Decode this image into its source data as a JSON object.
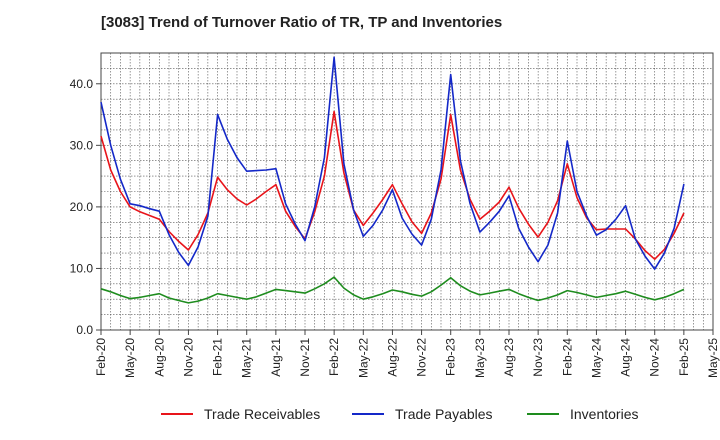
{
  "title": "[3083]  Trend of Turnover Ratio of TR, TP and Inventories",
  "chart_data": {
    "type": "line",
    "title": "[3083]  Trend of Turnover Ratio of TR, TP and Inventories",
    "xlabel": "",
    "ylabel": "",
    "ylim": [
      0,
      45
    ],
    "yticks": [
      0,
      10,
      20,
      30,
      40
    ],
    "ytick_labels": [
      "0.0",
      "10.0",
      "20.0",
      "30.0",
      "40.0"
    ],
    "x_start": "Feb-20",
    "x_end": "Feb-25",
    "xtick_labels": [
      "Feb-20",
      "May-20",
      "Aug-20",
      "Nov-20",
      "Feb-21",
      "May-21",
      "Aug-21",
      "Nov-21",
      "Feb-22",
      "May-22",
      "Aug-22",
      "Nov-22",
      "Feb-23",
      "May-23",
      "Aug-23",
      "Nov-23",
      "Feb-24",
      "May-24",
      "Aug-24",
      "Nov-24",
      "Feb-25",
      "May-25"
    ],
    "grid": true,
    "legend_position": "bottom",
    "x": [
      "Feb-20",
      "Mar-20",
      "Apr-20",
      "May-20",
      "Jun-20",
      "Jul-20",
      "Aug-20",
      "Sep-20",
      "Oct-20",
      "Nov-20",
      "Dec-20",
      "Jan-21",
      "Feb-21",
      "Mar-21",
      "Apr-21",
      "May-21",
      "Jun-21",
      "Jul-21",
      "Aug-21",
      "Sep-21",
      "Oct-21",
      "Nov-21",
      "Dec-21",
      "Jan-22",
      "Feb-22",
      "Mar-22",
      "Apr-22",
      "May-22",
      "Jun-22",
      "Jul-22",
      "Aug-22",
      "Sep-22",
      "Oct-22",
      "Nov-22",
      "Dec-22",
      "Jan-23",
      "Feb-23",
      "Mar-23",
      "Apr-23",
      "May-23",
      "Jun-23",
      "Jul-23",
      "Aug-23",
      "Sep-23",
      "Oct-23",
      "Nov-23",
      "Dec-23",
      "Jan-24",
      "Feb-24",
      "Mar-24",
      "Apr-24",
      "May-24",
      "Jun-24",
      "Jul-24",
      "Aug-24",
      "Sep-24",
      "Oct-24",
      "Nov-24",
      "Dec-24",
      "Jan-25",
      "Feb-25"
    ],
    "series": [
      {
        "name": "Trade Receivables",
        "color": "#e8141a",
        "values": [
          31.5,
          26.0,
          22.5,
          20.0,
          19.2,
          18.6,
          18.0,
          16.0,
          14.4,
          13.0,
          15.5,
          19.0,
          24.8,
          22.8,
          21.3,
          20.3,
          21.3,
          22.5,
          23.6,
          19.3,
          16.8,
          14.8,
          19.2,
          25.0,
          35.5,
          25.5,
          19.5,
          17.0,
          19.0,
          21.2,
          23.6,
          20.5,
          17.6,
          15.7,
          19.0,
          24.5,
          35.0,
          26.0,
          21.2,
          18.0,
          19.3,
          20.8,
          23.2,
          19.8,
          17.2,
          15.1,
          17.5,
          21.0,
          27.0,
          21.5,
          18.2,
          16.3,
          16.4,
          16.4,
          16.4,
          14.8,
          12.9,
          11.5,
          13.1,
          15.7,
          19.0
        ]
      },
      {
        "name": "Trade Payables",
        "color": "#1428c8",
        "values": [
          37.0,
          30.0,
          24.5,
          20.5,
          20.2,
          19.7,
          19.3,
          15.5,
          12.6,
          10.5,
          13.5,
          18.5,
          35.0,
          31.0,
          28.0,
          25.8,
          25.9,
          26.0,
          26.2,
          20.5,
          17.2,
          14.5,
          20.0,
          28.0,
          44.3,
          27.0,
          19.5,
          15.2,
          17.0,
          19.5,
          22.8,
          18.2,
          15.6,
          13.8,
          18.0,
          26.0,
          41.5,
          27.5,
          20.5,
          15.9,
          17.5,
          19.3,
          21.8,
          16.5,
          13.5,
          11.1,
          13.8,
          19.0,
          30.7,
          22.5,
          18.5,
          15.4,
          16.3,
          18.0,
          20.2,
          14.8,
          12.0,
          9.9,
          12.5,
          16.5,
          23.7
        ]
      },
      {
        "name": "Inventories",
        "color": "#1e8c1e",
        "values": [
          6.7,
          6.2,
          5.6,
          5.1,
          5.3,
          5.6,
          5.9,
          5.2,
          4.8,
          4.4,
          4.7,
          5.2,
          5.9,
          5.6,
          5.3,
          5.0,
          5.4,
          6.0,
          6.6,
          6.4,
          6.2,
          6.0,
          6.7,
          7.5,
          8.6,
          6.8,
          5.7,
          5.0,
          5.4,
          5.9,
          6.5,
          6.2,
          5.8,
          5.5,
          6.2,
          7.3,
          8.5,
          7.2,
          6.3,
          5.7,
          6.0,
          6.3,
          6.6,
          5.9,
          5.3,
          4.8,
          5.2,
          5.7,
          6.4,
          6.1,
          5.7,
          5.3,
          5.6,
          5.9,
          6.3,
          5.8,
          5.3,
          4.9,
          5.3,
          5.9,
          6.6
        ]
      }
    ]
  }
}
